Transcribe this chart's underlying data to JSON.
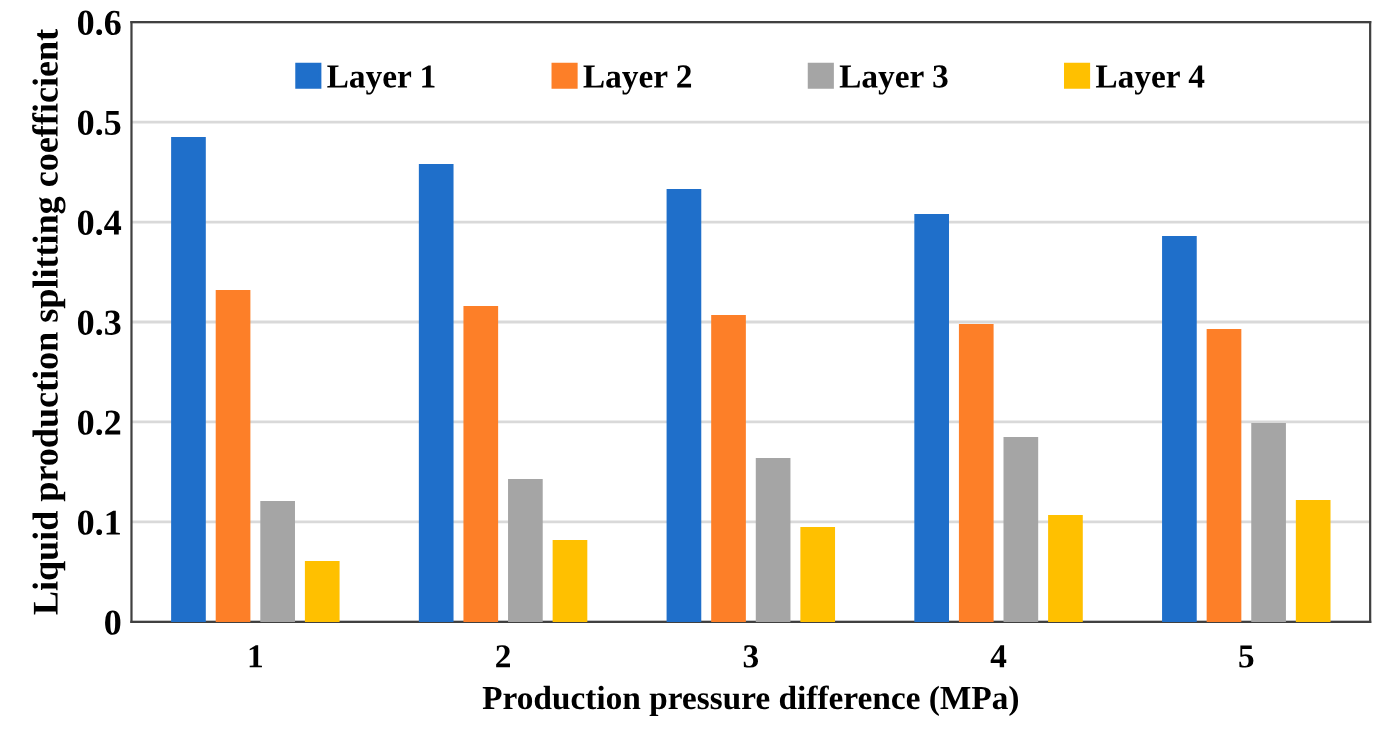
{
  "chart_data": {
    "type": "bar",
    "xlabel": "Production pressure difference (MPa)",
    "ylabel": "Liquid production splitting coefficient",
    "categories": [
      "1",
      "2",
      "3",
      "4",
      "5"
    ],
    "series": [
      {
        "name": "Layer 1",
        "color": "#1f6fca",
        "values": [
          0.485,
          0.458,
          0.433,
          0.408,
          0.386
        ]
      },
      {
        "name": "Layer 2",
        "color": "#fd7f28",
        "values": [
          0.332,
          0.316,
          0.307,
          0.298,
          0.293
        ]
      },
      {
        "name": "Layer 3",
        "color": "#a5a5a5",
        "values": [
          0.121,
          0.143,
          0.164,
          0.185,
          0.199
        ]
      },
      {
        "name": "Layer 4",
        "color": "#ffc000",
        "values": [
          0.061,
          0.082,
          0.095,
          0.107,
          0.122
        ]
      }
    ],
    "ylim": [
      0,
      0.6
    ],
    "yticks": [
      {
        "value": 0,
        "label": "0"
      },
      0.1,
      0.2,
      0.3,
      0.4,
      0.5,
      0.6
    ],
    "grid": "y",
    "legend": "top"
  }
}
